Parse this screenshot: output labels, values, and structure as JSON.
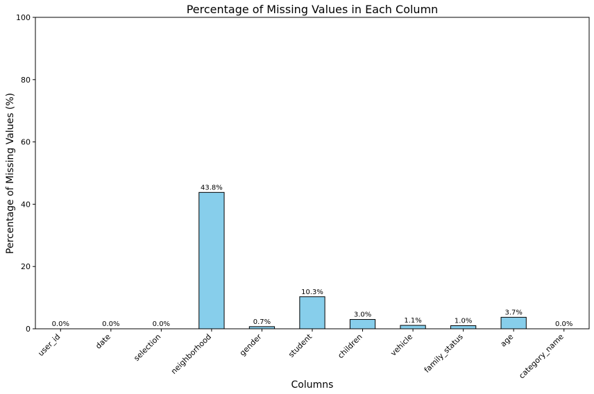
{
  "chart_data": {
    "type": "bar",
    "title": "Percentage of Missing Values in Each Column",
    "xlabel": "Columns",
    "ylabel": "Percentage of Missing Values (%)",
    "ylim": [
      0,
      100
    ],
    "yticks": [
      0,
      20,
      40,
      60,
      80,
      100
    ],
    "grid": false,
    "legend": "none",
    "bar_color": "#87ceeb",
    "edge_color": "#000000",
    "categories": [
      "user_id",
      "date",
      "selection",
      "neighborhood",
      "gender",
      "student",
      "children",
      "vehicle",
      "family_status",
      "age",
      "category_name"
    ],
    "values": [
      0.0,
      0.0,
      0.0,
      43.8,
      0.7,
      10.3,
      3.0,
      1.1,
      1.0,
      3.7,
      0.0
    ],
    "data_labels": [
      "0.0%",
      "0.0%",
      "0.0%",
      "43.8%",
      "0.7%",
      "10.3%",
      "3.0%",
      "1.1%",
      "1.0%",
      "3.7%",
      "0.0%"
    ]
  }
}
